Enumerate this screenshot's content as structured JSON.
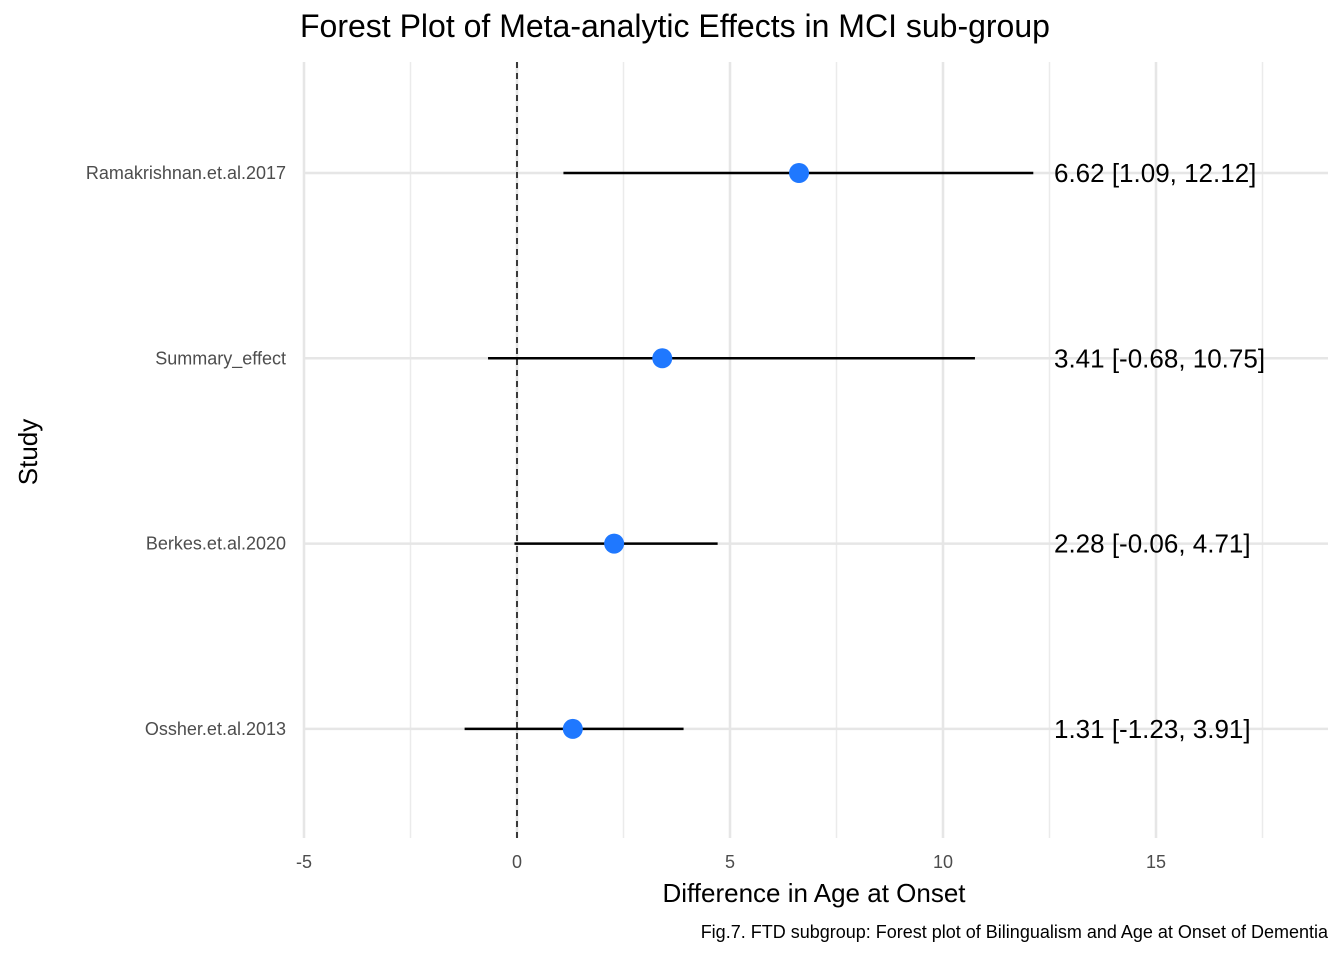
{
  "title": "Forest Plot of Meta-analytic Effects in MCI sub-group",
  "caption": "Fig.7. FTD subgroup: Forest plot of Bilingualism and Age at Onset of Dementia",
  "chart_data": {
    "type": "forest",
    "title": "Forest Plot of Meta-analytic Effects in MCI sub-group",
    "xlabel": "Difference in Age at Onset",
    "ylabel": "Study",
    "xlim": [
      -5,
      19
    ],
    "x_ticks": [
      -5,
      0,
      5,
      10,
      15
    ],
    "x_tick_labels": [
      "-5",
      "0",
      "5",
      "10",
      "15"
    ],
    "reference_line": 0,
    "grid": true,
    "point_color": "#1f78ff",
    "studies": [
      {
        "label": "Ramakrishnan.et.al.2017",
        "estimate": 6.62,
        "lower": 1.09,
        "upper": 12.12,
        "text": "6.62 [1.09, 12.12]"
      },
      {
        "label": "Summary_effect",
        "estimate": 3.41,
        "lower": -0.68,
        "upper": 10.75,
        "text": "3.41 [-0.68, 10.75]"
      },
      {
        "label": "Berkes.et.al.2020",
        "estimate": 2.28,
        "lower": -0.06,
        "upper": 4.71,
        "text": "2.28 [-0.06, 4.71]"
      },
      {
        "label": "Ossher.et.al.2013",
        "estimate": 1.31,
        "lower": -1.23,
        "upper": 3.91,
        "text": "1.31 [-1.23, 3.91]"
      }
    ]
  }
}
